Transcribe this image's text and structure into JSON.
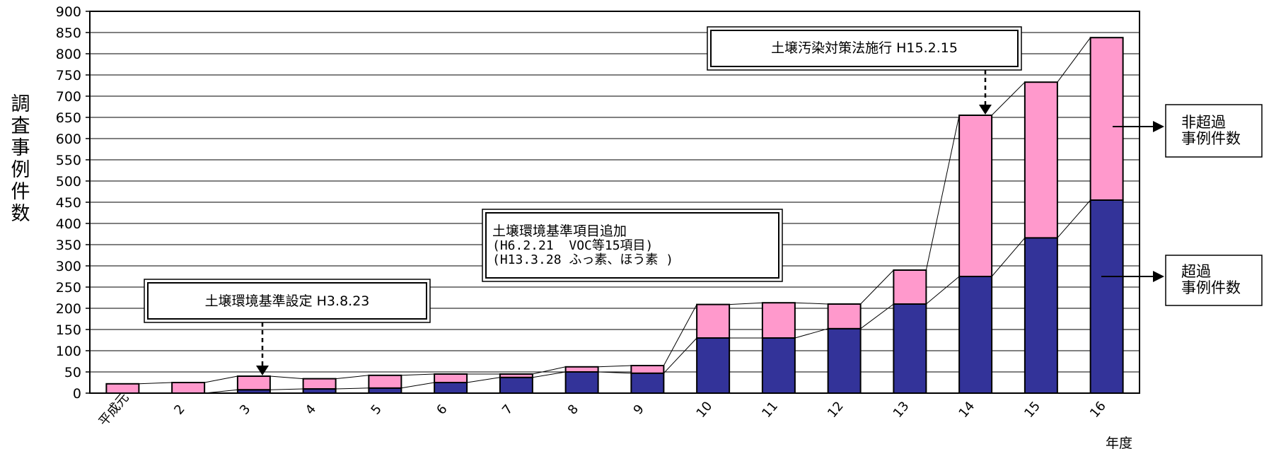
{
  "chart_data": {
    "type": "bar",
    "stacked": true,
    "categories": [
      "平成元",
      "2",
      "3",
      "4",
      "5",
      "6",
      "7",
      "8",
      "9",
      "10",
      "11",
      "12",
      "13",
      "14",
      "15",
      "16"
    ],
    "series": [
      {
        "name": "超過事例件数",
        "color": "#333399",
        "values": [
          0,
          0,
          8,
          10,
          12,
          25,
          37,
          50,
          47,
          130,
          130,
          152,
          210,
          275,
          366,
          455
        ]
      },
      {
        "name": "非超過事例件数",
        "color": "#ff99cc",
        "values": [
          22,
          25,
          32,
          24,
          30,
          20,
          8,
          12,
          18,
          79,
          83,
          58,
          80,
          380,
          367,
          383
        ]
      }
    ],
    "ylim": [
      0,
      900
    ],
    "yticks": [
      0,
      50,
      100,
      150,
      200,
      250,
      300,
      350,
      400,
      450,
      500,
      550,
      600,
      650,
      700,
      750,
      800,
      850,
      900
    ],
    "ylabel": "調査事例件数",
    "xlabel": "年度",
    "grid": true,
    "annotations": [
      {
        "id": "a1",
        "lines": [
          "土壌環境基準設定 H3.8.23"
        ]
      },
      {
        "id": "a2",
        "lines": [
          "土壌環境基準項目追加",
          "(H6.2.21  VOC等15項目)",
          "(H13.3.28 ふっ素、ほう素 )"
        ]
      },
      {
        "id": "a3",
        "lines": [
          "土壌汚染対策法施行 H15.2.15"
        ]
      }
    ],
    "legend": [
      {
        "lines": [
          "非超過",
          "事例件数"
        ]
      },
      {
        "lines": [
          "超過",
          "事例件数"
        ]
      }
    ]
  }
}
